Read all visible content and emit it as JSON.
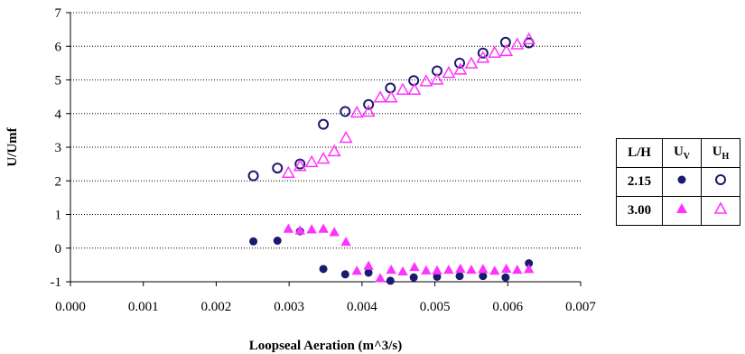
{
  "chart_data": {
    "type": "scatter",
    "xlabel": "Loopseal Aeration (m^3/s)",
    "ylabel": "U/Umf",
    "xlim": [
      0,
      0.007
    ],
    "ylim": [
      -1,
      7
    ],
    "x_ticks": [
      "0.000",
      "0.001",
      "0.002",
      "0.003",
      "0.004",
      "0.005",
      "0.006",
      "0.007"
    ],
    "y_ticks": [
      "-1",
      "0",
      "1",
      "2",
      "3",
      "4",
      "5",
      "6",
      "7"
    ],
    "grid": "horizontal dotted",
    "legend_placement": "right",
    "series": [
      {
        "id": "uv_215",
        "marker": "filled-circle",
        "color": "#1a1a6e",
        "points": [
          [
            0.00251,
            0.2
          ],
          [
            0.00284,
            0.22
          ],
          [
            0.00315,
            0.5
          ],
          [
            0.00347,
            -0.62
          ],
          [
            0.00377,
            -0.78
          ],
          [
            0.00409,
            -0.73
          ],
          [
            0.00439,
            -0.97
          ],
          [
            0.00471,
            -0.87
          ],
          [
            0.00503,
            -0.85
          ],
          [
            0.00534,
            -0.83
          ],
          [
            0.00566,
            -0.83
          ],
          [
            0.00597,
            -0.87
          ],
          [
            0.00629,
            -0.45
          ]
        ]
      },
      {
        "id": "uh_215",
        "marker": "open-circle",
        "color": "#1a1a6e",
        "points": [
          [
            0.00251,
            2.15
          ],
          [
            0.00284,
            2.38
          ],
          [
            0.00315,
            2.5
          ],
          [
            0.00347,
            3.68
          ],
          [
            0.00377,
            4.06
          ],
          [
            0.00409,
            4.27
          ],
          [
            0.00439,
            4.76
          ],
          [
            0.00471,
            4.98
          ],
          [
            0.00503,
            5.27
          ],
          [
            0.00534,
            5.5
          ],
          [
            0.00566,
            5.8
          ],
          [
            0.00597,
            6.12
          ],
          [
            0.00629,
            6.1
          ]
        ]
      },
      {
        "id": "uv_300",
        "marker": "filled-triangle",
        "color": "#ff33ff",
        "points": [
          [
            0.00299,
            0.57
          ],
          [
            0.00315,
            0.52
          ],
          [
            0.00331,
            0.55
          ],
          [
            0.00347,
            0.57
          ],
          [
            0.00362,
            0.47
          ],
          [
            0.00378,
            0.18
          ],
          [
            0.00393,
            -0.68
          ],
          [
            0.00409,
            -0.53
          ],
          [
            0.00425,
            -0.9
          ],
          [
            0.0044,
            -0.65
          ],
          [
            0.00456,
            -0.7
          ],
          [
            0.00472,
            -0.57
          ],
          [
            0.00488,
            -0.67
          ],
          [
            0.00503,
            -0.67
          ],
          [
            0.00519,
            -0.65
          ],
          [
            0.00535,
            -0.62
          ],
          [
            0.0055,
            -0.65
          ],
          [
            0.00566,
            -0.63
          ],
          [
            0.00582,
            -0.68
          ],
          [
            0.00598,
            -0.62
          ],
          [
            0.00613,
            -0.65
          ],
          [
            0.00629,
            -0.63
          ]
        ]
      },
      {
        "id": "uh_300",
        "marker": "open-triangle",
        "color": "#ff33ff",
        "points": [
          [
            0.00299,
            2.23
          ],
          [
            0.00315,
            2.43
          ],
          [
            0.00331,
            2.55
          ],
          [
            0.00347,
            2.65
          ],
          [
            0.00362,
            2.87
          ],
          [
            0.00378,
            3.27
          ],
          [
            0.00393,
            4.02
          ],
          [
            0.00409,
            4.05
          ],
          [
            0.00425,
            4.47
          ],
          [
            0.0044,
            4.47
          ],
          [
            0.00456,
            4.7
          ],
          [
            0.00472,
            4.7
          ],
          [
            0.00488,
            4.95
          ],
          [
            0.00503,
            5.0
          ],
          [
            0.00519,
            5.2
          ],
          [
            0.00535,
            5.3
          ],
          [
            0.0055,
            5.48
          ],
          [
            0.00566,
            5.65
          ],
          [
            0.00582,
            5.8
          ],
          [
            0.00598,
            5.85
          ],
          [
            0.00613,
            6.05
          ],
          [
            0.00629,
            6.2
          ]
        ]
      }
    ],
    "legend": {
      "header": {
        "lh": "L/H",
        "uv_main": "U",
        "uv_sub": "V",
        "uh_main": "U",
        "uh_sub": "H"
      },
      "rows": [
        {
          "label": "2.15",
          "uv_series": "uv_215",
          "uh_series": "uh_215"
        },
        {
          "label": "3.00",
          "uv_series": "uv_300",
          "uh_series": "uh_300"
        }
      ]
    }
  }
}
